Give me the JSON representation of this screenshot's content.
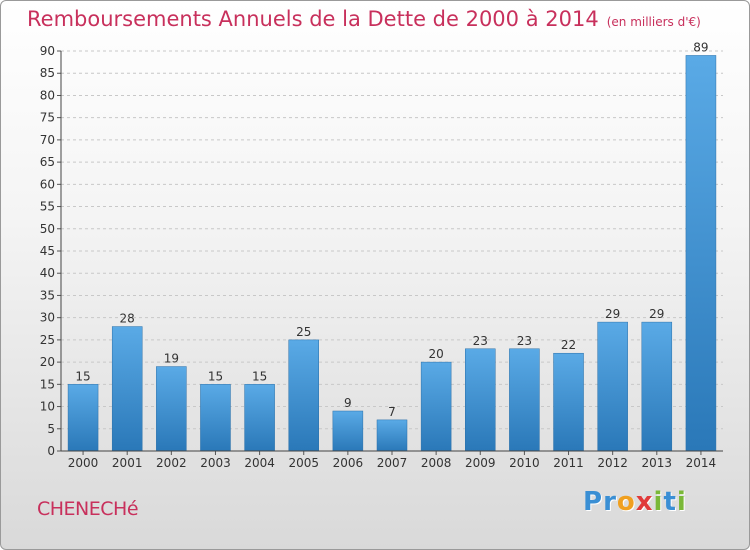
{
  "header": {
    "title": "Remboursements Annuels de la Dette de 2000 à 2014",
    "unit": "(en milliers d'€)"
  },
  "footer": {
    "commune": "CHENECHé",
    "logo_letters": [
      {
        "char": "P",
        "color": "#3a8fd4"
      },
      {
        "char": "r",
        "color": "#3a8fd4"
      },
      {
        "char": "o",
        "color": "#f0a020"
      },
      {
        "char": "x",
        "color": "#e03a3a"
      },
      {
        "char": "i",
        "color": "#7ab838"
      },
      {
        "char": "t",
        "color": "#3a8fd4"
      },
      {
        "char": "i",
        "color": "#7ab838"
      }
    ]
  },
  "chart_data": {
    "type": "bar",
    "title": "Remboursements Annuels de la Dette de 2000 à 2014",
    "unit": "(en milliers d'€)",
    "categories": [
      "2000",
      "2001",
      "2002",
      "2003",
      "2004",
      "2005",
      "2006",
      "2007",
      "2008",
      "2009",
      "2010",
      "2011",
      "2012",
      "2013",
      "2014"
    ],
    "values": [
      15,
      28,
      19,
      15,
      15,
      25,
      9,
      7,
      20,
      23,
      23,
      22,
      29,
      29,
      89
    ],
    "ylim": [
      0,
      90
    ],
    "yticks": [
      0,
      5,
      10,
      15,
      20,
      25,
      30,
      35,
      40,
      45,
      50,
      55,
      60,
      65,
      70,
      75,
      80,
      85,
      90
    ],
    "grid": true,
    "bar_color_light": "#5aaae6",
    "bar_color_dark": "#2a78b8"
  }
}
